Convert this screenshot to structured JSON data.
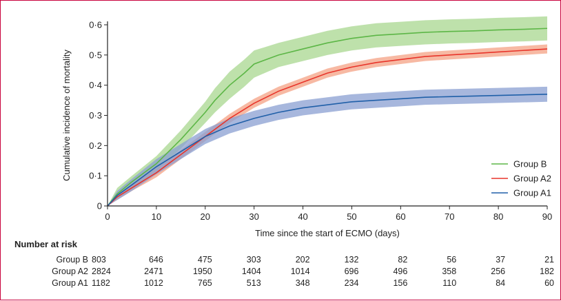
{
  "chart_data": {
    "type": "line",
    "xlabel": "Time since the start of ECMO (days)",
    "ylabel": "Cumulative incidence of mortality",
    "xlim": [
      0,
      90
    ],
    "ylim": [
      0,
      0.6
    ],
    "xticks": [
      0,
      10,
      20,
      30,
      40,
      50,
      60,
      70,
      80,
      90
    ],
    "xtick_labels": [
      "0",
      "10",
      "20",
      "30",
      "40",
      "50",
      "60",
      "70",
      "80",
      "90"
    ],
    "yticks": [
      0,
      0.1,
      0.2,
      0.3,
      0.4,
      0.5,
      0.6
    ],
    "ytick_labels": [
      "0",
      "0·1",
      "0·2",
      "0·3",
      "0·4",
      "0·5",
      "0·6"
    ],
    "grid": false,
    "legend_position": "right",
    "series": [
      {
        "name": "Group B",
        "color": "#5cb646",
        "band_color": "#a8d78f",
        "x": [
          0,
          2,
          5,
          10,
          15,
          20,
          22,
          25,
          28,
          30,
          35,
          40,
          45,
          50,
          55,
          60,
          65,
          70,
          75,
          80,
          85,
          90
        ],
        "y": [
          0,
          0.04,
          0.08,
          0.14,
          0.22,
          0.31,
          0.35,
          0.4,
          0.44,
          0.47,
          0.5,
          0.52,
          0.54,
          0.555,
          0.565,
          0.57,
          0.575,
          0.578,
          0.58,
          0.583,
          0.585,
          0.588
        ],
        "lower": [
          0,
          0.025,
          0.06,
          0.115,
          0.19,
          0.275,
          0.31,
          0.355,
          0.395,
          0.425,
          0.46,
          0.48,
          0.5,
          0.515,
          0.525,
          0.53,
          0.535,
          0.538,
          0.54,
          0.543,
          0.545,
          0.548
        ],
        "upper": [
          0,
          0.06,
          0.1,
          0.165,
          0.25,
          0.345,
          0.39,
          0.445,
          0.485,
          0.515,
          0.54,
          0.56,
          0.58,
          0.595,
          0.605,
          0.61,
          0.615,
          0.618,
          0.62,
          0.623,
          0.625,
          0.628
        ]
      },
      {
        "name": "Group A2",
        "color": "#e8342a",
        "band_color": "#f4a184",
        "x": [
          0,
          2,
          5,
          10,
          15,
          20,
          25,
          30,
          35,
          40,
          45,
          50,
          55,
          60,
          65,
          70,
          75,
          80,
          85,
          90
        ],
        "y": [
          0,
          0.03,
          0.06,
          0.11,
          0.17,
          0.23,
          0.29,
          0.34,
          0.38,
          0.41,
          0.44,
          0.46,
          0.475,
          0.485,
          0.495,
          0.5,
          0.505,
          0.51,
          0.515,
          0.52
        ],
        "lower": [
          0,
          0.02,
          0.05,
          0.095,
          0.155,
          0.215,
          0.275,
          0.325,
          0.365,
          0.395,
          0.425,
          0.445,
          0.46,
          0.47,
          0.48,
          0.485,
          0.49,
          0.495,
          0.5,
          0.505
        ],
        "upper": [
          0,
          0.04,
          0.07,
          0.125,
          0.185,
          0.245,
          0.305,
          0.355,
          0.395,
          0.425,
          0.455,
          0.475,
          0.49,
          0.5,
          0.51,
          0.515,
          0.52,
          0.525,
          0.53,
          0.535
        ]
      },
      {
        "name": "Group A1",
        "color": "#1f5fa8",
        "band_color": "#8a9fd1",
        "x": [
          0,
          2,
          5,
          10,
          15,
          20,
          25,
          30,
          35,
          40,
          45,
          50,
          55,
          60,
          65,
          70,
          75,
          80,
          85,
          90
        ],
        "y": [
          0,
          0.035,
          0.07,
          0.13,
          0.18,
          0.23,
          0.265,
          0.29,
          0.31,
          0.325,
          0.335,
          0.345,
          0.35,
          0.355,
          0.36,
          0.362,
          0.364,
          0.366,
          0.368,
          0.37
        ],
        "lower": [
          0,
          0.02,
          0.05,
          0.105,
          0.155,
          0.205,
          0.24,
          0.265,
          0.285,
          0.3,
          0.31,
          0.32,
          0.325,
          0.33,
          0.335,
          0.337,
          0.339,
          0.341,
          0.343,
          0.345
        ],
        "upper": [
          0,
          0.05,
          0.09,
          0.155,
          0.205,
          0.255,
          0.29,
          0.315,
          0.335,
          0.35,
          0.36,
          0.37,
          0.375,
          0.38,
          0.385,
          0.387,
          0.389,
          0.391,
          0.393,
          0.395
        ]
      }
    ],
    "risk_table": {
      "title": "Number at risk",
      "rows": [
        {
          "label": "Group B",
          "values": [
            803,
            646,
            475,
            303,
            202,
            132,
            82,
            56,
            37,
            21
          ]
        },
        {
          "label": "Group A2",
          "values": [
            2824,
            2471,
            1950,
            1404,
            1014,
            696,
            496,
            358,
            256,
            182
          ]
        },
        {
          "label": "Group A1",
          "values": [
            1182,
            1012,
            765,
            513,
            348,
            234,
            156,
            110,
            84,
            60
          ]
        }
      ]
    }
  }
}
